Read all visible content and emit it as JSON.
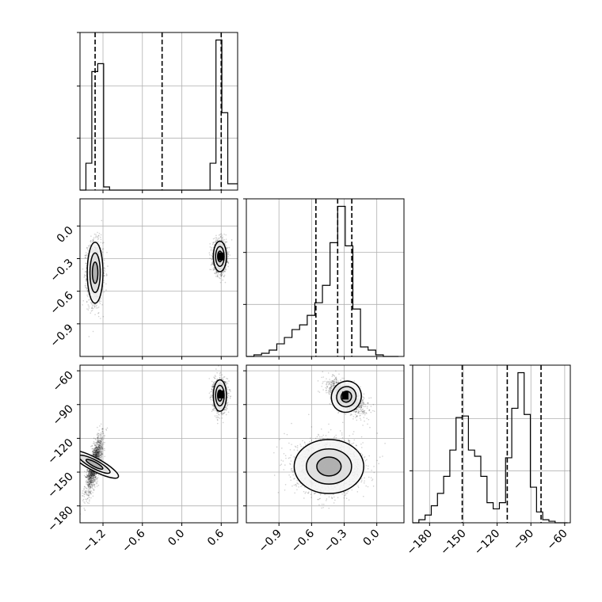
{
  "chart_data": {
    "type": "corner",
    "grid": true,
    "parameters": [
      {
        "range": [
          -1.55,
          0.85
        ],
        "ticks": [
          -1.2,
          -0.6,
          0.0,
          0.6
        ],
        "tick_labels": [
          "−1.2",
          "−0.6",
          "0.0",
          "0.6"
        ],
        "quantiles": [
          -1.32,
          -0.3,
          0.6
        ],
        "histogram": {
          "edges": [
            -1.55,
            -1.46,
            -1.37,
            -1.28,
            -1.19,
            -1.1,
            -1.01,
            -0.92,
            -0.83,
            -0.74,
            -0.65,
            -0.56,
            -0.47,
            -0.38,
            -0.29,
            -0.2,
            -0.11,
            -0.02,
            0.07,
            0.16,
            0.25,
            0.34,
            0.43,
            0.52,
            0.61,
            0.7,
            0.79,
            0.85
          ],
          "counts": [
            0,
            0.17,
            0.75,
            0.8,
            0.02,
            0,
            0,
            0,
            0,
            0,
            0,
            0,
            0,
            0,
            0,
            0,
            0,
            0,
            0,
            0,
            0,
            0,
            0.17,
            0.95,
            0.49,
            0.04,
            0.04
          ]
        }
      },
      {
        "range": [
          -1.2,
          0.25
        ],
        "ticks": [
          -0.9,
          -0.6,
          -0.3,
          0.0
        ],
        "tick_labels": [
          "−0.9",
          "−0.6",
          "−0.3",
          "0.0"
        ],
        "quantiles": [
          -0.56,
          -0.36,
          -0.23
        ],
        "histogram": {
          "edges": [
            -1.2,
            -1.13,
            -1.06,
            -0.99,
            -0.92,
            -0.85,
            -0.78,
            -0.71,
            -0.64,
            -0.57,
            -0.5,
            -0.43,
            -0.36,
            -0.29,
            -0.22,
            -0.15,
            -0.08,
            -0.01,
            0.06,
            0.13,
            0.2
          ],
          "counts": [
            0,
            0.01,
            0.02,
            0.04,
            0.08,
            0.12,
            0.17,
            0.2,
            0.26,
            0.34,
            0.45,
            0.72,
            0.95,
            0.7,
            0.3,
            0.06,
            0.04,
            0.01,
            0.0,
            0.0
          ]
        }
      },
      {
        "range": [
          -195,
          -55
        ],
        "ticks": [
          -180,
          -150,
          -120,
          -90,
          -60
        ],
        "tick_labels": [
          "−180",
          "−150",
          "−120",
          "−90",
          "−60"
        ],
        "quantiles": [
          -151,
          -111,
          -81
        ],
        "histogram": {
          "edges": [
            -195,
            -189.5,
            -184,
            -178.5,
            -173,
            -167.5,
            -162,
            -156.5,
            -151,
            -145.5,
            -140,
            -134.5,
            -129,
            -123.5,
            -118,
            -112.5,
            -107,
            -101.5,
            -96,
            -90.5,
            -85,
            -79.5,
            -74,
            -68.5,
            -63,
            -57.5
          ],
          "counts": [
            0,
            0.02,
            0.05,
            0.11,
            0.19,
            0.3,
            0.47,
            0.68,
            0.69,
            0.47,
            0.43,
            0.3,
            0.13,
            0.09,
            0.13,
            0.42,
            0.74,
            0.97,
            0.7,
            0.23,
            0.07,
            0.02,
            0.01,
            0,
            0
          ]
        }
      }
    ],
    "pair_panels": [
      {
        "x_param": 0,
        "y_param": 1,
        "clusters": [
          {
            "center": [
              -1.32,
              -0.43
            ],
            "spread": [
              0.06,
              0.14
            ],
            "samples": 1600
          },
          {
            "center": [
              0.58,
              -0.28
            ],
            "spread": [
              0.05,
              0.07
            ],
            "samples": 1600
          }
        ],
        "peak": [
          0.6,
          -0.28
        ]
      },
      {
        "x_param": 0,
        "y_param": 2,
        "clusters": [
          {
            "center": [
              -1.33,
              -143
            ],
            "spread": [
              0.06,
              12
            ],
            "samples": 1600,
            "tilt": 0.75
          },
          {
            "center": [
              0.58,
              -82
            ],
            "spread": [
              0.05,
              7
            ],
            "samples": 1600
          }
        ],
        "peak": [
          0.6,
          -81
        ]
      },
      {
        "x_param": 1,
        "y_param": 2,
        "clusters": [
          {
            "center": [
              -0.28,
              -83
            ],
            "spread": [
              0.08,
              7
            ],
            "samples": 1600,
            "tilt": -0.6
          },
          {
            "center": [
              -0.44,
              -145
            ],
            "spread": [
              0.16,
              12
            ],
            "samples": 1600
          }
        ],
        "peak": [
          -0.29,
          -82
        ]
      }
    ]
  }
}
